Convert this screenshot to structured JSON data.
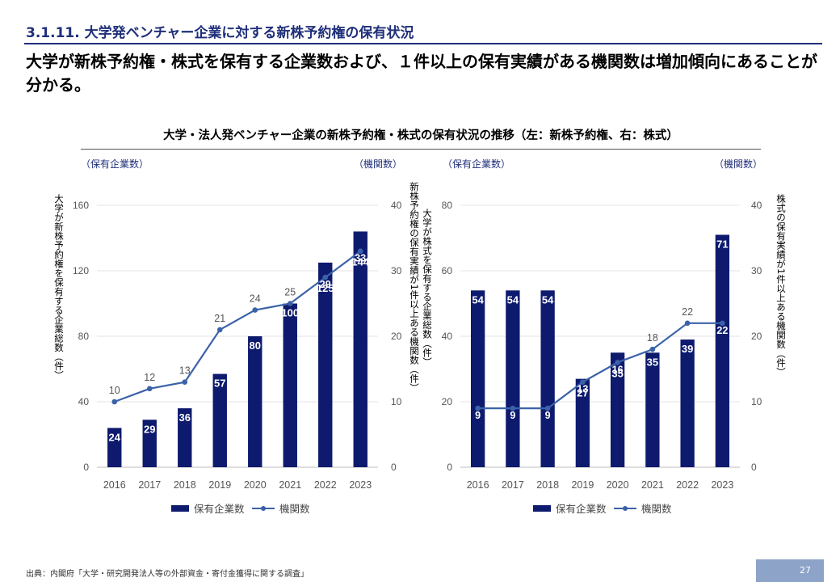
{
  "section_title": "3.1.11. 大学発ベンチャー企業に対する新株予約権の保有状況",
  "headline": "大学が新株予約権・株式を保有する企業数および、１件以上の保有実績がある機関数は増加傾向にあることが分かる。",
  "chart_heading": "大学・法人発ベンチャー企業の新株予約権・株式の保有状況の推移（左：新株予約権、右：株式）",
  "colors": {
    "bar": "#0d1a6e",
    "line": "#3b62a8",
    "axis_text": "#555555",
    "section": "#1f2f7a"
  },
  "left": {
    "unit_left": "（保有企業数）",
    "unit_right": "（機関数）",
    "ylabel_left": "大学が新株予約権を保有する企業総数（件）",
    "ylabel_right": "新株予約権の保有実績が1件以上ある機関数（件）"
  },
  "right": {
    "unit_left": "（保有企業数）",
    "unit_right": "（機関数）",
    "ylabel_left": "大学が株式を保有する企業総数（件）",
    "ylabel_right": "株式の保有実績が1件以上ある機関数（件）"
  },
  "chart_data": [
    {
      "type": "bar",
      "title": "新株予約権",
      "categories": [
        "2016",
        "2017",
        "2018",
        "2019",
        "2020",
        "2021",
        "2022",
        "2023"
      ],
      "series": [
        {
          "name": "保有企業数",
          "kind": "bar",
          "axis": "left",
          "values": [
            24,
            29,
            36,
            57,
            80,
            100,
            125,
            144
          ]
        },
        {
          "name": "機関数",
          "kind": "line",
          "axis": "right",
          "values": [
            10,
            12,
            13,
            21,
            24,
            25,
            29,
            33
          ]
        }
      ],
      "ylim_left": [
        0,
        160
      ],
      "yticks_left": [
        0,
        40,
        80,
        120,
        160
      ],
      "ylim_right": [
        0,
        40
      ],
      "yticks_right": [
        0,
        10,
        20,
        30,
        40
      ],
      "legend": [
        "保有企業数",
        "機関数"
      ]
    },
    {
      "type": "bar",
      "title": "株式",
      "categories": [
        "2016",
        "2017",
        "2018",
        "2019",
        "2020",
        "2021",
        "2022",
        "2023"
      ],
      "series": [
        {
          "name": "保有企業数",
          "kind": "bar",
          "axis": "left",
          "values": [
            54,
            54,
            54,
            27,
            35,
            35,
            39,
            71
          ]
        },
        {
          "name": "機関数",
          "kind": "line",
          "axis": "right",
          "values": [
            9,
            9,
            9,
            13,
            16,
            18,
            22,
            22
          ]
        }
      ],
      "ylim_left": [
        0,
        80
      ],
      "yticks_left": [
        0,
        20,
        40,
        60,
        80
      ],
      "ylim_right": [
        0,
        40
      ],
      "yticks_right": [
        0,
        10,
        20,
        30,
        40
      ],
      "legend": [
        "保有企業数",
        "機関数"
      ]
    }
  ],
  "footer": {
    "source": "出典：内閣府「大学・研究開発法人等の外部資金・寄付金獲得に関する調査」",
    "page": "27"
  }
}
